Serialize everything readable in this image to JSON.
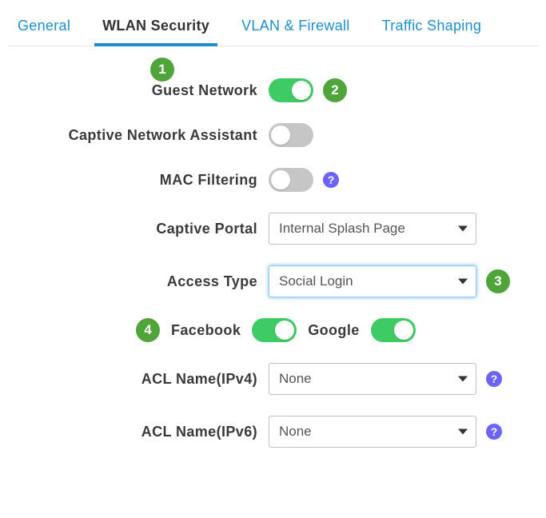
{
  "tabs": {
    "general": "General",
    "wlan_security": "WLAN Security",
    "vlan_firewall": "VLAN & Firewall",
    "traffic_shaping": "Traffic Shaping",
    "active": "wlan_security"
  },
  "badges": {
    "b1": "1",
    "b2": "2",
    "b3": "3",
    "b4": "4"
  },
  "labels": {
    "guest_network": "Guest Network",
    "captive_network_assistant": "Captive Network Assistant",
    "mac_filtering": "MAC Filtering",
    "captive_portal": "Captive Portal",
    "access_type": "Access Type",
    "facebook": "Facebook",
    "google": "Google",
    "acl_ipv4": "ACL Name(IPv4)",
    "acl_ipv6": "ACL Name(IPv6)"
  },
  "toggles": {
    "guest_network": true,
    "captive_network_assistant": false,
    "mac_filtering": false,
    "facebook": true,
    "google": true
  },
  "selects": {
    "captive_portal": "Internal Splash Page",
    "access_type": "Social Login",
    "acl_ipv4": "None",
    "acl_ipv6": "None"
  },
  "help_glyph": "?",
  "colors": {
    "accent_blue": "#1d8ecf",
    "toggle_on": "#3fcb63",
    "toggle_off": "#c6c6c6",
    "badge_green": "#4fa43a",
    "help_purple": "#6c63ff"
  }
}
